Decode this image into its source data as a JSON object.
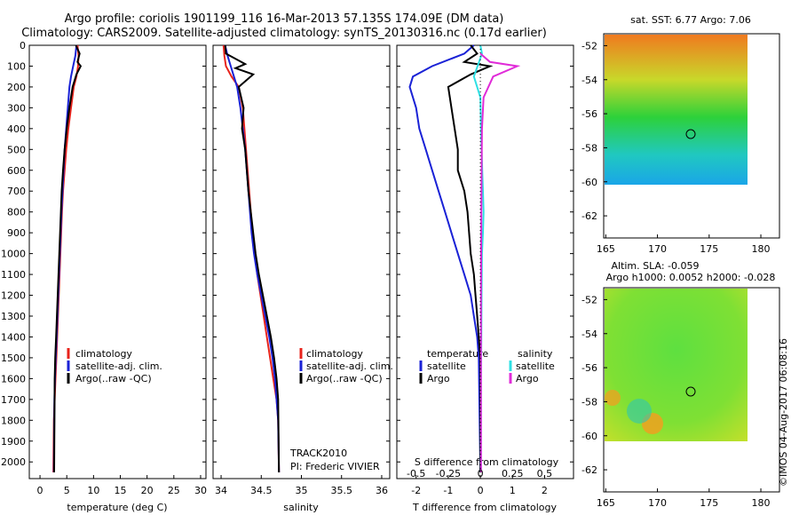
{
  "titles": {
    "line1": "Argo profile: coriolis 1901199_116 16-Mar-2013 57.135S 174.09E (DM data)",
    "line2": "Climatology: CARS2009. Satellite-adjusted climatology: synTS_20130316.nc (0.17d earlier)"
  },
  "credit": "©IMOS 04-Aug-2017 06:08:16",
  "colors": {
    "climatology": "#e8231b",
    "satellite": "#1a22d6",
    "argo": "#000000",
    "sal_satellite": "#2fe0e4",
    "sal_argo": "#e02bd8"
  },
  "depth_ticks": [
    0,
    100,
    200,
    300,
    400,
    500,
    600,
    700,
    800,
    900,
    1000,
    1100,
    1200,
    1300,
    1400,
    1500,
    1600,
    1700,
    1800,
    1900,
    2000
  ],
  "panels": {
    "temperature": {
      "xlabel": "temperature (deg C)",
      "xticks": [
        "0",
        "5",
        "10",
        "15",
        "20",
        "25",
        "30"
      ],
      "legend": [
        "climatology",
        "satellite-adj. clim.",
        "Argo(..raw -QC)"
      ]
    },
    "salinity": {
      "xlabel": "salinity",
      "xticks": [
        "34",
        "34.5",
        "35",
        "35.5",
        "36"
      ],
      "legend": [
        "climatology",
        "satellite-adj. clim.",
        "Argo(..raw -QC)"
      ],
      "note1": "TRACK2010",
      "note2": "PI: Frederic VIVIER"
    },
    "difference": {
      "xlabel": "T difference from climatology",
      "xticks": [
        "-2",
        "-1",
        "0",
        "1",
        "2"
      ],
      "s_label": "S difference from climatology",
      "s_ticks": [
        "-0.5",
        "-0.25",
        "0",
        "0.25",
        "0.5"
      ],
      "legend_t_title": "temperature",
      "legend_s_title": "salinity",
      "legend_t": [
        "satellite",
        "Argo"
      ],
      "legend_s": [
        "satellite",
        "Argo"
      ]
    },
    "map_sst": {
      "title": "sat. SST: 6.77 Argo: 7.06",
      "yticks": [
        "-52",
        "-54",
        "-56",
        "-58",
        "-60",
        "-62"
      ],
      "xticks": [
        "165",
        "170",
        "175",
        "180"
      ]
    },
    "map_sla": {
      "title1": "Altim. SLA: -0.059",
      "title2": "Argo h1000: 0.0052 h2000: -0.028",
      "yticks": [
        "-52",
        "-54",
        "-56",
        "-58",
        "-60",
        "-62"
      ],
      "xticks": [
        "165",
        "170",
        "175",
        "180"
      ]
    }
  },
  "chart_data": [
    {
      "type": "line",
      "title": "",
      "xlabel": "temperature (deg C)",
      "ylabel": "",
      "xlim": [
        -2,
        31
      ],
      "ylim": [
        2080,
        0
      ],
      "series": [
        {
          "name": "climatology",
          "color": "#e8231b",
          "x": [
            7.0,
            7.2,
            7.1,
            6.8,
            6.3,
            5.8,
            5.3,
            4.9,
            4.6,
            4.3,
            4.1,
            3.95,
            3.8,
            3.65,
            3.5,
            3.35,
            3.2,
            3.05,
            2.9,
            2.75,
            2.6,
            2.5
          ],
          "y": [
            0,
            50,
            100,
            150,
            200,
            300,
            400,
            500,
            600,
            700,
            800,
            900,
            1000,
            1100,
            1200,
            1300,
            1400,
            1500,
            1600,
            1700,
            1800,
            2050
          ]
        },
        {
          "name": "satellite-adj. clim.",
          "color": "#1a22d6",
          "x": [
            6.8,
            6.6,
            6.2,
            5.8,
            5.5,
            5.2,
            4.9,
            4.6,
            4.4,
            4.2,
            4.0,
            3.85,
            3.7,
            3.55,
            3.4,
            3.25,
            3.1,
            2.95,
            2.8,
            2.7,
            2.6
          ],
          "y": [
            0,
            50,
            100,
            150,
            200,
            300,
            400,
            500,
            600,
            700,
            800,
            900,
            1000,
            1100,
            1200,
            1300,
            1400,
            1500,
            1600,
            1700,
            2050
          ]
        },
        {
          "name": "Argo(..raw -QC)",
          "color": "#000000",
          "x": [
            6.7,
            7.4,
            7.0,
            7.6,
            6.8,
            6.1,
            5.5,
            5.0,
            4.6,
            4.3,
            4.05,
            3.9,
            3.75,
            3.6,
            3.45,
            3.3,
            3.15,
            3.0,
            2.85,
            2.75,
            2.65
          ],
          "y": [
            0,
            40,
            80,
            100,
            140,
            200,
            300,
            400,
            500,
            600,
            700,
            800,
            900,
            1000,
            1100,
            1200,
            1300,
            1400,
            1500,
            1600,
            2050
          ]
        }
      ]
    },
    {
      "type": "line",
      "title": "",
      "xlabel": "salinity",
      "ylabel": "",
      "xlim": [
        33.9,
        36.1
      ],
      "ylim": [
        2080,
        0
      ],
      "series": [
        {
          "name": "climatology",
          "color": "#e8231b",
          "x": [
            34.03,
            34.04,
            34.06,
            34.13,
            34.22,
            34.27,
            34.29,
            34.31,
            34.33,
            34.35,
            34.37,
            34.39,
            34.42,
            34.45,
            34.49,
            34.53,
            34.57,
            34.61,
            34.65,
            34.69,
            34.71,
            34.72
          ],
          "y": [
            0,
            50,
            100,
            150,
            200,
            300,
            400,
            500,
            600,
            700,
            800,
            900,
            1000,
            1100,
            1200,
            1300,
            1400,
            1500,
            1600,
            1700,
            1800,
            2050
          ]
        },
        {
          "name": "satellite-adj. clim.",
          "color": "#1a22d6",
          "x": [
            34.05,
            34.08,
            34.12,
            34.16,
            34.2,
            34.24,
            34.27,
            34.3,
            34.32,
            34.34,
            34.36,
            34.38,
            34.41,
            34.45,
            34.5,
            34.55,
            34.6,
            34.64,
            34.67,
            34.69,
            34.71,
            34.72
          ],
          "y": [
            0,
            50,
            100,
            150,
            200,
            300,
            400,
            500,
            600,
            700,
            800,
            900,
            1000,
            1100,
            1200,
            1300,
            1400,
            1500,
            1600,
            1700,
            1800,
            2050
          ]
        },
        {
          "name": "Argo(..raw -QC)",
          "color": "#000000",
          "x": [
            34.05,
            34.06,
            34.3,
            34.18,
            34.4,
            34.22,
            34.28,
            34.26,
            34.3,
            34.32,
            34.34,
            34.37,
            34.4,
            34.43,
            34.47,
            34.52,
            34.57,
            34.62,
            34.66,
            34.69,
            34.71,
            34.72
          ],
          "y": [
            0,
            40,
            90,
            110,
            140,
            200,
            300,
            400,
            500,
            600,
            700,
            800,
            900,
            1000,
            1100,
            1200,
            1300,
            1400,
            1500,
            1600,
            1700,
            2050
          ]
        }
      ]
    },
    {
      "type": "line",
      "title": "",
      "xlabel": "T difference from climatology",
      "ylabel": "",
      "xlim": [
        -2.6,
        2.9
      ],
      "ylim": [
        2080,
        0
      ],
      "series": [
        {
          "name": "temperature satellite",
          "color": "#1a22d6",
          "x": [
            -0.2,
            -0.5,
            -1.5,
            -2.1,
            -2.2,
            -2.0,
            -1.9,
            -1.7,
            -1.5,
            -1.3,
            -1.1,
            -0.9,
            -0.7,
            -0.5,
            -0.3,
            -0.2,
            -0.1,
            -0.05,
            0.0
          ],
          "y": [
            0,
            40,
            100,
            150,
            200,
            300,
            400,
            500,
            600,
            700,
            800,
            900,
            1000,
            1100,
            1200,
            1300,
            1400,
            1500,
            2050
          ]
        },
        {
          "name": "temperature Argo",
          "color": "#000000",
          "x": [
            -0.3,
            -0.1,
            -0.5,
            0.3,
            -0.3,
            -1.0,
            -0.9,
            -0.8,
            -0.7,
            -0.7,
            -0.5,
            -0.4,
            -0.35,
            -0.3,
            -0.2,
            -0.15,
            -0.1,
            0.0,
            0.0
          ],
          "y": [
            0,
            40,
            80,
            100,
            140,
            200,
            300,
            400,
            500,
            600,
            700,
            800,
            900,
            1000,
            1100,
            1200,
            1300,
            1500,
            2050
          ]
        },
        {
          "name": "salinity satellite",
          "color": "#2fe0e4",
          "x": [
            0.0,
            0.05,
            -0.2,
            0.0,
            0.02,
            0.04,
            0.06,
            0.08,
            0.1,
            0.08,
            0.05,
            0.04,
            0.03,
            0.02,
            0.02,
            0.02
          ],
          "y": [
            0,
            40,
            150,
            250,
            400,
            500,
            600,
            700,
            800,
            900,
            1000,
            1200,
            1400,
            1600,
            1800,
            2050
          ]
        },
        {
          "name": "salinity Argo",
          "color": "#e02bd8",
          "x": [
            0.0,
            0.3,
            1.15,
            0.4,
            0.1,
            0.05,
            0.04,
            0.03,
            0.02,
            0.02
          ],
          "y": [
            40,
            80,
            100,
            150,
            250,
            400,
            600,
            800,
            1200,
            2050
          ]
        }
      ]
    }
  ]
}
